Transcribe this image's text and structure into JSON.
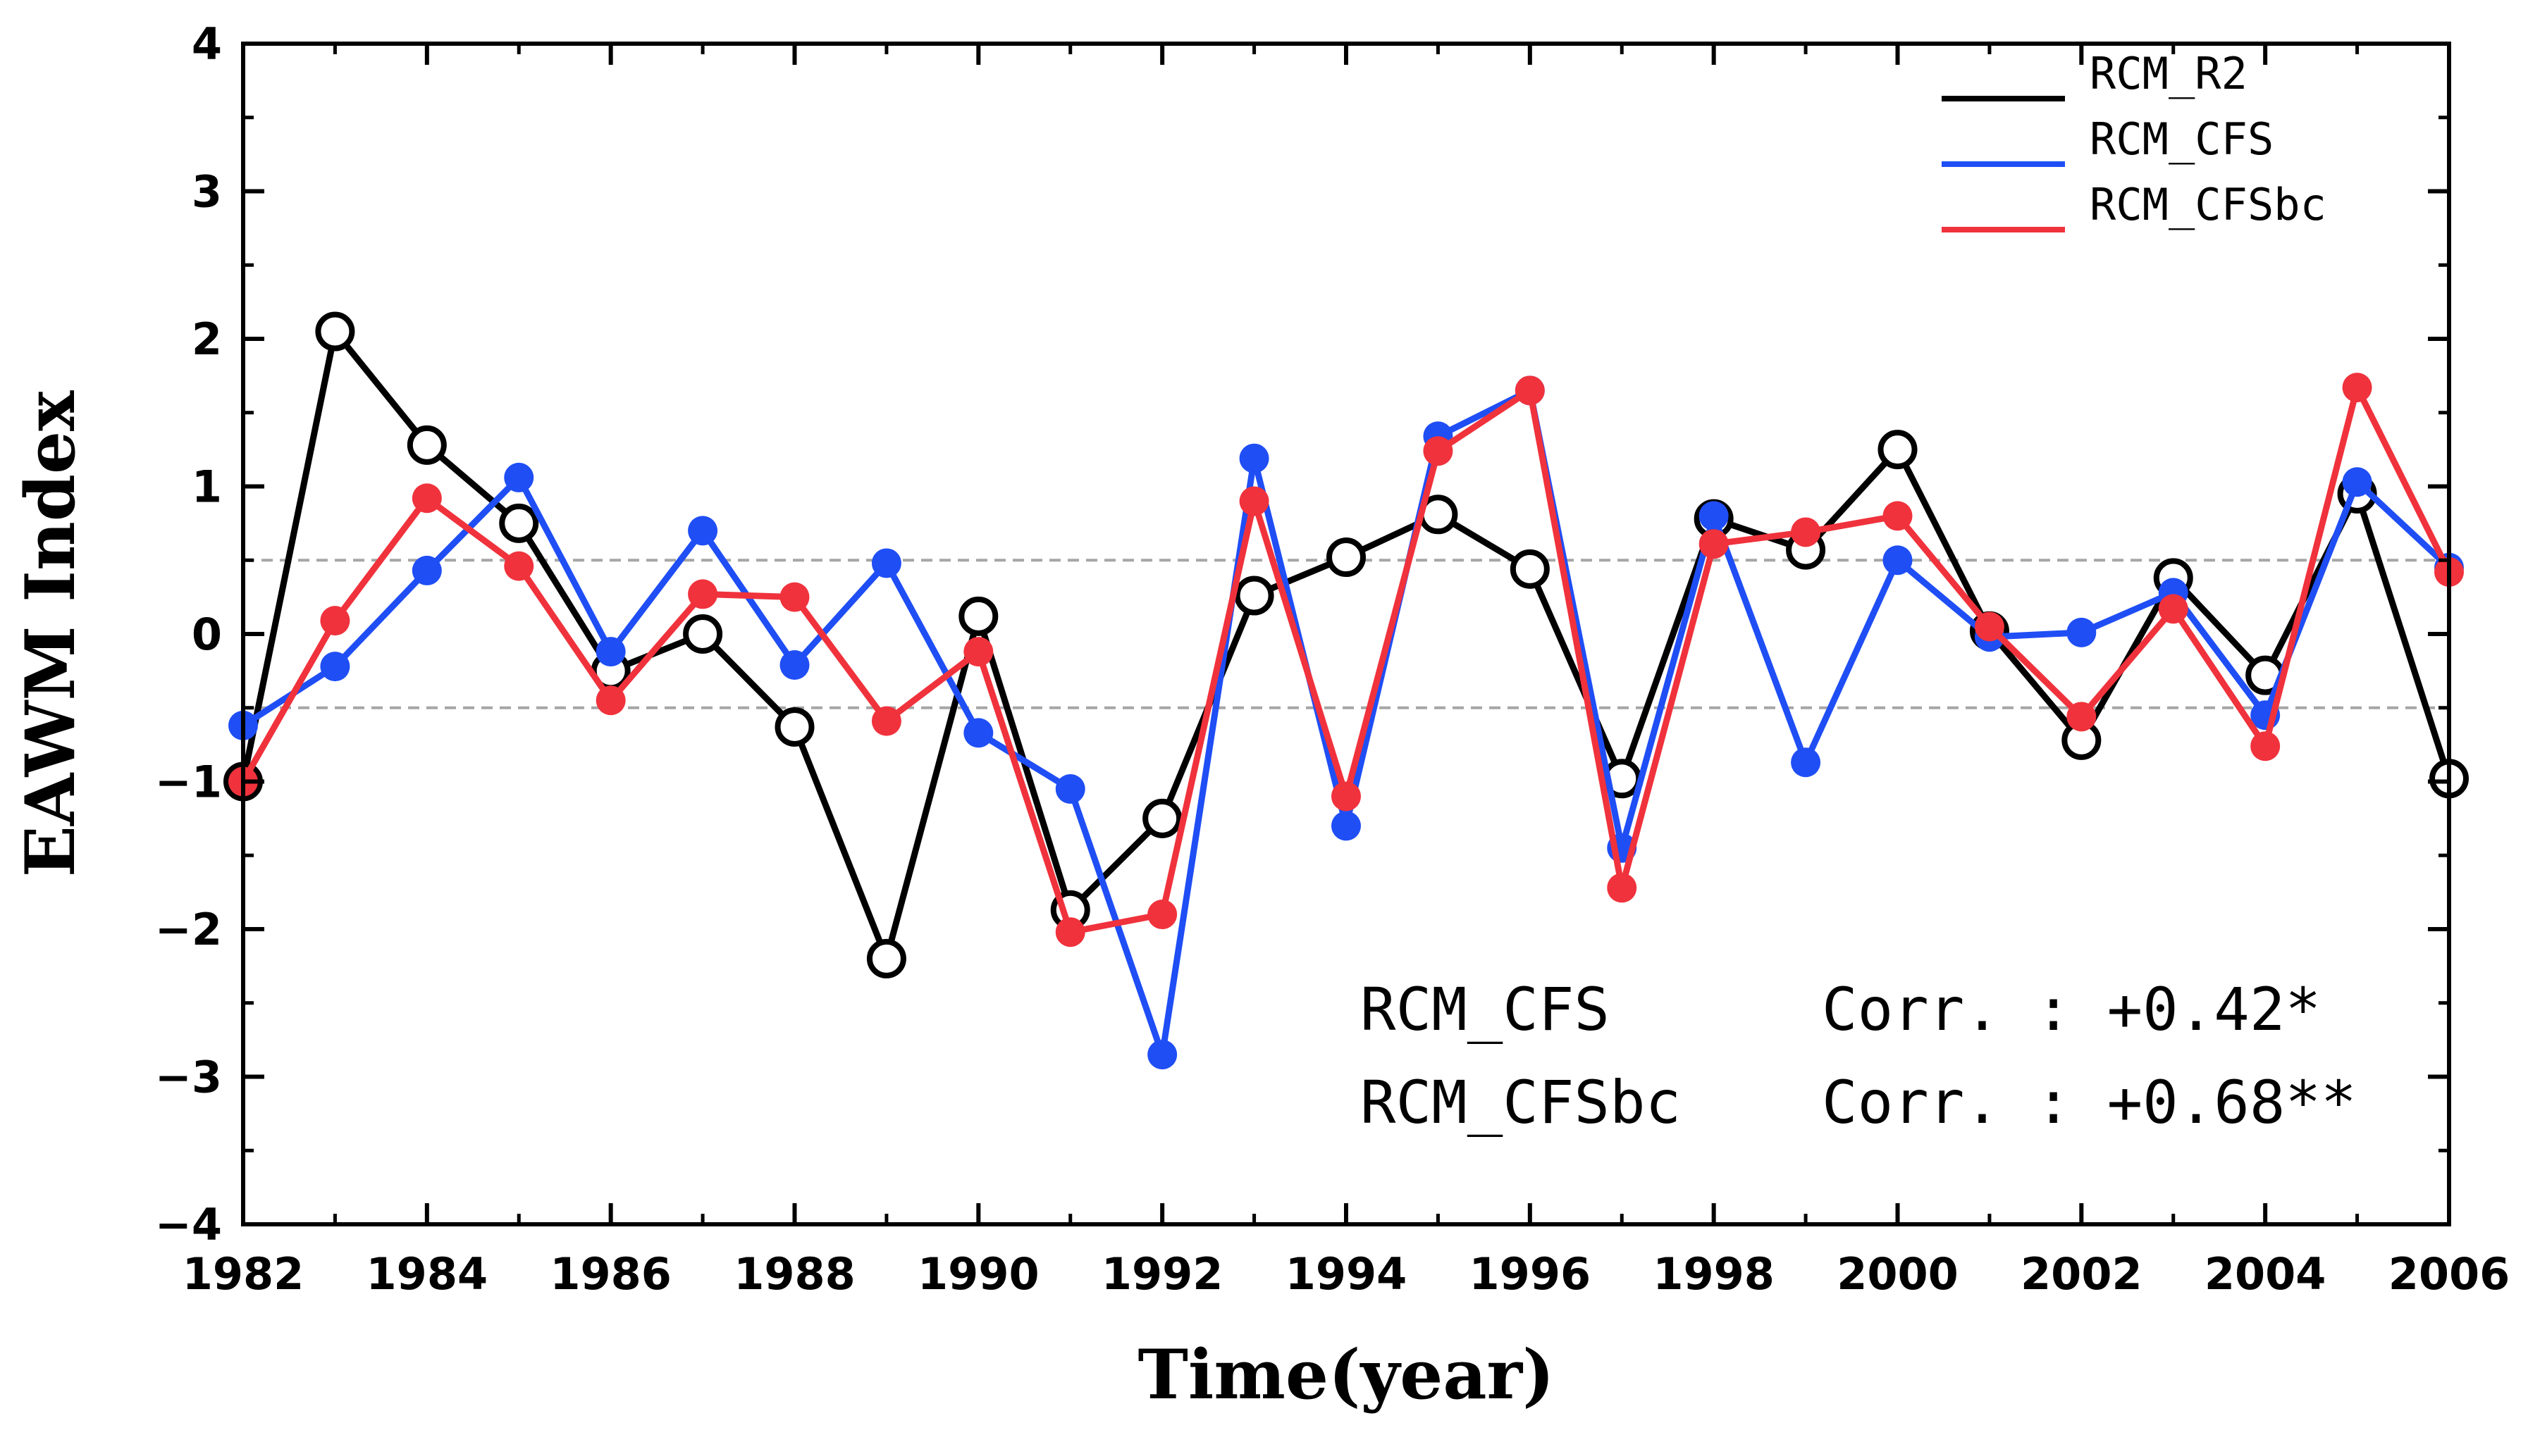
{
  "chart_data": {
    "type": "line",
    "title": "",
    "xlabel": "Time(year)",
    "ylabel": "EAWM Index",
    "xlim": [
      1982,
      2006
    ],
    "ylim": [
      -4,
      4
    ],
    "x_ticks": [
      "1982",
      "1984",
      "1986",
      "1988",
      "1990",
      "1992",
      "1994",
      "1996",
      "1998",
      "2000",
      "2002",
      "2004",
      "2006"
    ],
    "y_ticks": [
      "−4",
      "−3",
      "−2",
      "−1",
      "0",
      "1",
      "2",
      "3",
      "4"
    ],
    "reference_lines": [
      0.5,
      -0.5
    ],
    "x": [
      1982,
      1983,
      1984,
      1985,
      1986,
      1987,
      1988,
      1989,
      1990,
      1991,
      1992,
      1993,
      1994,
      1995,
      1996,
      1997,
      1998,
      1999,
      2000,
      2001,
      2002,
      2003,
      2004,
      2005,
      2006
    ],
    "series": [
      {
        "name": "RCM_R2",
        "color": "#000000",
        "marker": "open-circle",
        "values": [
          -1.0,
          2.05,
          1.28,
          0.75,
          -0.25,
          0.0,
          -0.63,
          -2.2,
          0.12,
          -1.87,
          -1.25,
          0.26,
          0.52,
          0.81,
          0.44,
          -0.98,
          0.78,
          0.57,
          1.25,
          0.02,
          -0.72,
          0.38,
          -0.28,
          0.95,
          -0.98
        ]
      },
      {
        "name": "RCM_CFS",
        "color": "#1f4ef5",
        "marker": "filled-circle",
        "values": [
          -0.62,
          -0.22,
          0.43,
          1.06,
          -0.12,
          0.7,
          -0.21,
          0.48,
          -0.67,
          -1.05,
          -2.85,
          1.19,
          -1.3,
          1.34,
          1.65,
          -1.45,
          0.8,
          -0.87,
          0.5,
          -0.02,
          0.01,
          0.28,
          -0.55,
          1.03,
          0.45
        ]
      },
      {
        "name": "RCM_CFSbc",
        "color": "#f0323c",
        "marker": "filled-circle",
        "values": [
          -1.0,
          0.09,
          0.92,
          0.46,
          -0.45,
          0.27,
          0.25,
          -0.59,
          -0.12,
          -2.02,
          -1.9,
          0.9,
          -1.1,
          1.24,
          1.65,
          -1.72,
          0.61,
          0.69,
          0.8,
          0.05,
          -0.56,
          0.17,
          -0.76,
          1.67,
          0.42
        ]
      }
    ],
    "legend": {
      "placement": "top-right",
      "entries": [
        "RCM_R2",
        "RCM_CFS",
        "RCM_CFSbc"
      ]
    },
    "annotations": [
      {
        "label": "RCM_CFS",
        "text": "Corr. : +0.42*"
      },
      {
        "label": "RCM_CFSbc",
        "text": "Corr. : +0.68**"
      }
    ]
  }
}
